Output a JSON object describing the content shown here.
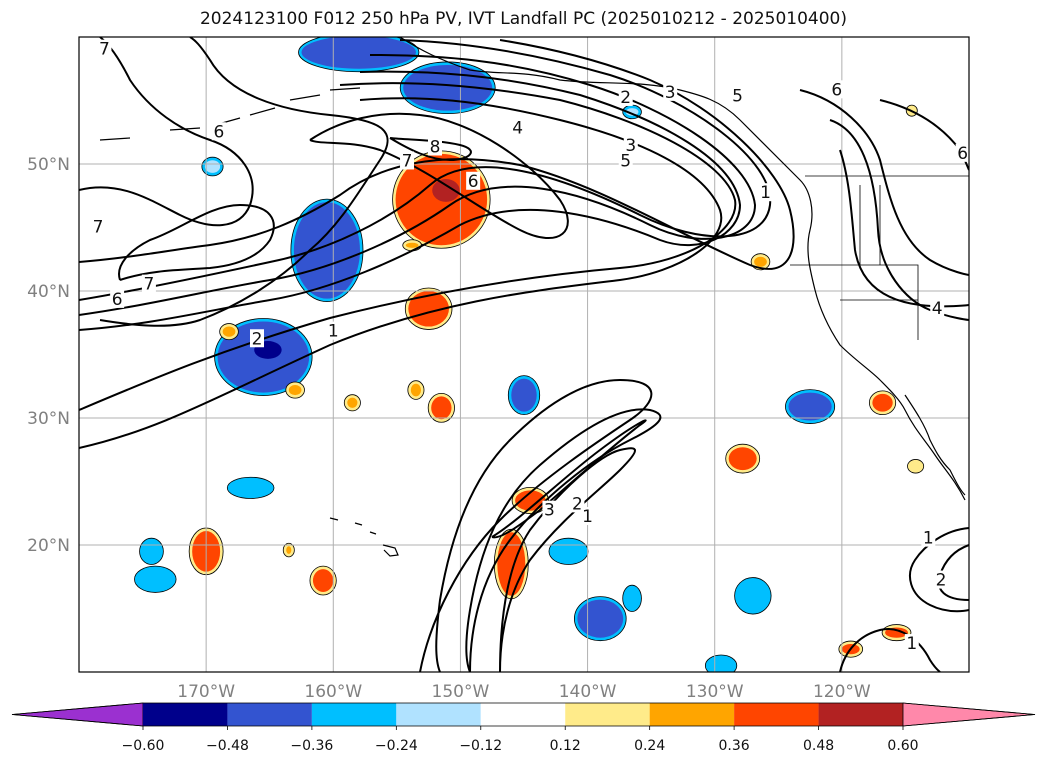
{
  "title": "2024123100 F012 250 hPa PV, IVT Landfall PC (2025010212 - 2025010400)",
  "latitudes": [
    {
      "label": "50°N",
      "value": 50
    },
    {
      "label": "40°N",
      "value": 40
    },
    {
      "label": "30°N",
      "value": 30
    },
    {
      "label": "20°N",
      "value": 20
    }
  ],
  "longitudes": [
    {
      "label": "170°W",
      "value": -170
    },
    {
      "label": "160°W",
      "value": -160
    },
    {
      "label": "150°W",
      "value": -150
    },
    {
      "label": "140°W",
      "value": -140
    },
    {
      "label": "130°W",
      "value": -130
    },
    {
      "label": "120°W",
      "value": -120
    }
  ],
  "colorbar": {
    "colors": [
      "#9b30d0",
      "#00008b",
      "#3354d0",
      "#00bfff",
      "#b0e2ff",
      "#ffffff",
      "#ffeb8a",
      "#ffa500",
      "#ff4500",
      "#b22222",
      "#ff88aa"
    ],
    "tick_labels": [
      "−0.60",
      "−0.48",
      "−0.36",
      "−0.24",
      "−0.12",
      "0.12",
      "0.24",
      "0.36",
      "0.48",
      "0.60"
    ]
  },
  "contour_labels": [
    {
      "text": "7",
      "lon": -178,
      "lat": 59
    },
    {
      "text": "6",
      "lon": -169,
      "lat": 52.5
    },
    {
      "text": "7",
      "lon": -178.5,
      "lat": 45
    },
    {
      "text": "7",
      "lon": -174.5,
      "lat": 40.5
    },
    {
      "text": "6",
      "lon": -177,
      "lat": 39.3
    },
    {
      "text": "2",
      "lon": -166,
      "lat": 36.2
    },
    {
      "text": "1",
      "lon": -160,
      "lat": 36.8
    },
    {
      "text": "8",
      "lon": -152,
      "lat": 51.3
    },
    {
      "text": "7",
      "lon": -154.2,
      "lat": 50.2
    },
    {
      "text": "6",
      "lon": -149,
      "lat": 48.6
    },
    {
      "text": "4",
      "lon": -145.5,
      "lat": 52.8
    },
    {
      "text": "2",
      "lon": -137,
      "lat": 55.2
    },
    {
      "text": "3",
      "lon": -133.5,
      "lat": 55.6
    },
    {
      "text": "3",
      "lon": -136.6,
      "lat": 51.4
    },
    {
      "text": "5",
      "lon": -137,
      "lat": 50.2
    },
    {
      "text": "5",
      "lon": -128.2,
      "lat": 55.3
    },
    {
      "text": "1",
      "lon": -126,
      "lat": 47.7
    },
    {
      "text": "6",
      "lon": -120.4,
      "lat": 55.8
    },
    {
      "text": "6",
      "lon": -110.5,
      "lat": 50.8
    },
    {
      "text": "4",
      "lon": -112.5,
      "lat": 38.6
    },
    {
      "text": "3",
      "lon": -143,
      "lat": 22.7
    },
    {
      "text": "2",
      "lon": -140.8,
      "lat": 23.2
    },
    {
      "text": "1",
      "lon": -140,
      "lat": 22.2
    },
    {
      "text": "1",
      "lon": -113.2,
      "lat": 20.5
    },
    {
      "text": "2",
      "lon": -112.2,
      "lat": 17.2
    },
    {
      "text": "1",
      "lon": -114.5,
      "lat": 12.2
    }
  ],
  "pv_anomalies": [
    {
      "lon": -165.5,
      "lat": 34.8,
      "rx": 3.6,
      "ry": 2.8,
      "value": -0.44
    },
    {
      "lon": -160.5,
      "lat": 43.2,
      "rx": 2.6,
      "ry": 3.8,
      "value": -0.4
    },
    {
      "lon": -151,
      "lat": 56,
      "rx": 3.5,
      "ry": 1.8,
      "value": -0.4
    },
    {
      "lon": -158,
      "lat": 58.8,
      "rx": 4.5,
      "ry": 1.3,
      "value": -0.4
    },
    {
      "lon": -145,
      "lat": 31.8,
      "rx": 1.0,
      "ry": 1.3,
      "value": -0.38
    },
    {
      "lon": -166.5,
      "lat": 24.5,
      "rx": 1.6,
      "ry": 0.6,
      "value": -0.36
    },
    {
      "lon": -174,
      "lat": 17.3,
      "rx": 1.4,
      "ry": 0.8,
      "value": -0.34
    },
    {
      "lon": -174.3,
      "lat": 19.5,
      "rx": 0.7,
      "ry": 0.8,
      "value": -0.3
    },
    {
      "lon": -141.5,
      "lat": 19.5,
      "rx": 1.3,
      "ry": 0.8,
      "value": -0.34
    },
    {
      "lon": -139,
      "lat": 14.2,
      "rx": 1.8,
      "ry": 1.5,
      "value": -0.4
    },
    {
      "lon": -136.5,
      "lat": 15.8,
      "rx": 0.5,
      "ry": 0.8,
      "value": -0.3
    },
    {
      "lon": -127,
      "lat": 16,
      "rx": 1.2,
      "ry": 1.2,
      "value": -0.36
    },
    {
      "lon": -122.5,
      "lat": 30.9,
      "rx": 1.7,
      "ry": 1.1,
      "value": -0.38
    },
    {
      "lon": -129.5,
      "lat": 10.5,
      "rx": 1.0,
      "ry": 0.6,
      "value": -0.36
    },
    {
      "lon": -169.5,
      "lat": 49.8,
      "rx": 0.6,
      "ry": 0.5,
      "value": -0.2
    },
    {
      "lon": -136.5,
      "lat": 54.1,
      "rx": 0.5,
      "ry": 0.3,
      "value": -0.2
    },
    {
      "lon": -151.5,
      "lat": 47.2,
      "rx": 3.6,
      "ry": 3.6,
      "value": 0.46
    },
    {
      "lon": -152.5,
      "lat": 38.6,
      "rx": 1.6,
      "ry": 1.4,
      "value": 0.4
    },
    {
      "lon": -170,
      "lat": 19.5,
      "rx": 1.1,
      "ry": 1.6,
      "value": 0.4
    },
    {
      "lon": -146,
      "lat": 18.5,
      "rx": 1.1,
      "ry": 2.5,
      "value": 0.4
    },
    {
      "lon": -144.5,
      "lat": 23.5,
      "rx": 1.2,
      "ry": 0.8,
      "value": 0.36
    },
    {
      "lon": -151.5,
      "lat": 30.8,
      "rx": 0.8,
      "ry": 0.9,
      "value": 0.38
    },
    {
      "lon": -160.8,
      "lat": 17.2,
      "rx": 0.8,
      "ry": 0.9,
      "value": 0.38
    },
    {
      "lon": -127.8,
      "lat": 26.8,
      "rx": 1.1,
      "ry": 0.9,
      "value": 0.38
    },
    {
      "lon": -116.8,
      "lat": 31.2,
      "rx": 0.8,
      "ry": 0.7,
      "value": 0.36
    },
    {
      "lon": -115.7,
      "lat": 13.1,
      "rx": 0.9,
      "ry": 0.4,
      "value": 0.36
    },
    {
      "lon": -119.3,
      "lat": 11.8,
      "rx": 0.7,
      "ry": 0.4,
      "value": 0.36
    },
    {
      "lon": -126.4,
      "lat": 42.3,
      "rx": 0.5,
      "ry": 0.4,
      "value": 0.3
    },
    {
      "lon": -168.2,
      "lat": 36.8,
      "rx": 0.5,
      "ry": 0.4,
      "value": 0.3
    },
    {
      "lon": -163,
      "lat": 32.2,
      "rx": 0.5,
      "ry": 0.4,
      "value": 0.3
    },
    {
      "lon": -153.5,
      "lat": 32.2,
      "rx": 0.4,
      "ry": 0.5,
      "value": 0.3
    },
    {
      "lon": -158.5,
      "lat": 31.2,
      "rx": 0.4,
      "ry": 0.4,
      "value": 0.3
    },
    {
      "lon": -153.8,
      "lat": 43.6,
      "rx": 0.5,
      "ry": 0.2,
      "value": 0.3
    },
    {
      "lon": -163.5,
      "lat": 19.6,
      "rx": 0.2,
      "ry": 0.3,
      "value": 0.24
    },
    {
      "lon": -114.2,
      "lat": 26.2,
      "rx": 0.4,
      "ry": 0.3,
      "value": 0.2
    },
    {
      "lon": -114.5,
      "lat": 54.2,
      "rx": 0.2,
      "ry": 0.2,
      "value": 0.2
    }
  ]
}
